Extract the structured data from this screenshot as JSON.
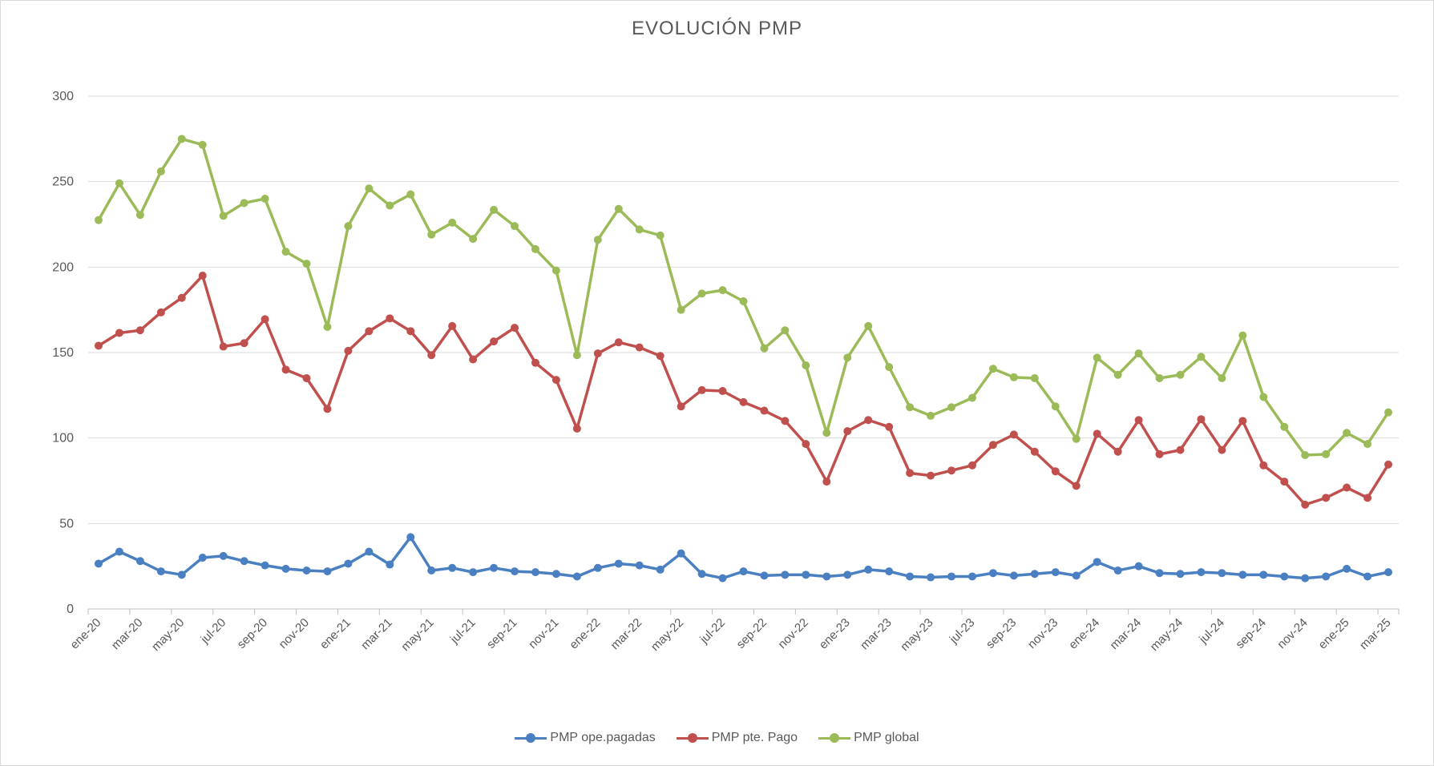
{
  "chart_data": {
    "type": "line",
    "title": "EVOLUCIÓN PMP",
    "xlabel": "",
    "ylabel": "",
    "ylim": [
      0,
      300
    ],
    "yticks": [
      0,
      50,
      100,
      150,
      200,
      250,
      300
    ],
    "grid": true,
    "legend_position": "bottom",
    "categories": [
      "ene-20",
      "feb-20",
      "mar-20",
      "abr-20",
      "may-20",
      "jun-20",
      "jul-20",
      "ago-20",
      "sep-20",
      "oct-20",
      "nov-20",
      "dic-20",
      "ene-21",
      "feb-21",
      "mar-21",
      "abr-21",
      "may-21",
      "jun-21",
      "jul-21",
      "ago-21",
      "sep-21",
      "oct-21",
      "nov-21",
      "dic-21",
      "ene-22",
      "feb-22",
      "mar-22",
      "abr-22",
      "may-22",
      "jun-22",
      "jul-22",
      "ago-22",
      "sep-22",
      "oct-22",
      "nov-22",
      "dic-22",
      "ene-23",
      "feb-23",
      "mar-23",
      "abr-23",
      "may-23",
      "jun-23",
      "jul-23",
      "ago-23",
      "sep-23",
      "oct-23",
      "nov-23",
      "dic-23",
      "ene-24",
      "feb-24",
      "mar-24",
      "abr-24",
      "may-24",
      "jun-24",
      "jul-24",
      "ago-24",
      "sep-24",
      "oct-24",
      "nov-24",
      "dic-24",
      "ene-25",
      "feb-25",
      "mar-25"
    ],
    "shown_labels": [
      "ene-20",
      "mar-20",
      "may-20",
      "jul-20",
      "sep-20",
      "nov-20",
      "ene-21",
      "mar-21",
      "may-21",
      "jul-21",
      "sep-21",
      "nov-21",
      "ene-22",
      "mar-22",
      "may-22",
      "jul-22",
      "sep-22",
      "nov-22",
      "ene-23",
      "mar-23",
      "may-23",
      "jul-23",
      "sep-23",
      "nov-23",
      "ene-24",
      "mar-24",
      "may-24",
      "jul-24",
      "sep-24",
      "nov-24",
      "ene-25",
      "mar-25"
    ],
    "series": [
      {
        "name": "PMP ope.pagadas",
        "color": "#4a7fc1",
        "values": [
          26.5,
          33.5,
          28,
          22,
          20,
          30,
          31,
          28,
          25.5,
          23.5,
          22.5,
          22,
          26.5,
          33.5,
          26,
          42,
          22.5,
          24,
          21.5,
          24,
          22,
          21.5,
          20.5,
          19,
          24,
          26.5,
          25.5,
          23,
          32.5,
          20.5,
          18,
          22,
          19.5,
          20,
          20,
          19,
          20,
          23,
          22,
          19,
          18.5,
          19,
          19,
          21,
          19.5,
          20.5,
          21.5,
          19.5,
          27.5,
          22.5,
          25,
          21,
          20.5,
          21.5,
          21,
          20,
          20,
          19,
          18,
          19,
          23.5,
          19,
          21.5
        ]
      },
      {
        "name": "PMP pte. Pago",
        "color": "#c0504d",
        "values": [
          154,
          161.5,
          163,
          173.5,
          182,
          195,
          153.5,
          155.5,
          169.5,
          140,
          135,
          117,
          151,
          162.5,
          170,
          162.5,
          148.5,
          165.5,
          146,
          156.5,
          164.5,
          144,
          134,
          105.5,
          149.5,
          156,
          153,
          148,
          118.5,
          128,
          127.5,
          121,
          116,
          110,
          96.5,
          74.5,
          104,
          110.5,
          106.5,
          79.5,
          78,
          81,
          84,
          96,
          102,
          92,
          80.5,
          72,
          102.5,
          92,
          110.5,
          90.5,
          93,
          111,
          93,
          110,
          84,
          74.5,
          61,
          65,
          71,
          65,
          84.5
        ]
      },
      {
        "name": "PMP global",
        "color": "#9bbb59",
        "values": [
          227.5,
          249,
          230.5,
          256,
          275,
          271.5,
          230,
          237.5,
          240,
          209,
          202,
          165,
          224,
          246,
          236,
          242.5,
          219,
          226,
          216.5,
          233.5,
          224,
          210.5,
          198,
          148.5,
          216,
          234,
          222,
          218.5,
          175,
          184.5,
          186.5,
          180,
          152.5,
          163,
          142.5,
          103,
          147,
          165.5,
          141.5,
          118,
          113,
          118,
          123.5,
          140.5,
          135.5,
          135,
          118.5,
          99.5,
          147,
          137,
          149.5,
          135,
          137,
          147.5,
          135,
          160,
          124,
          106.5,
          90,
          90.5,
          103,
          96.5,
          115
        ]
      }
    ]
  }
}
